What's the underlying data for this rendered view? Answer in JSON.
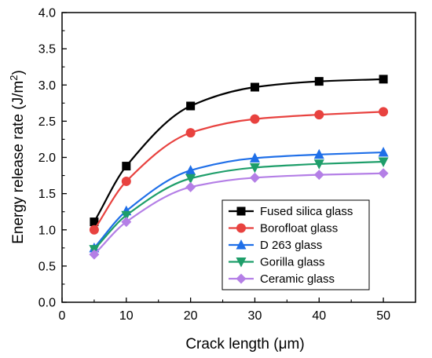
{
  "chart_data": {
    "type": "line",
    "xlabel": "Crack length (μm)",
    "ylabel": "Energy release rate (J/m²)",
    "ylabel_main": "Energy release rate (J/m",
    "ylabel_sup": "2",
    "ylabel_end": ")",
    "xlim": [
      0,
      55
    ],
    "ylim": [
      0.0,
      4.0
    ],
    "x_ticks": [
      0,
      10,
      20,
      30,
      40,
      50
    ],
    "x_tick_labels": [
      "0",
      "10",
      "20",
      "30",
      "40",
      "50"
    ],
    "y_ticks": [
      0.0,
      0.5,
      1.0,
      1.5,
      2.0,
      2.5,
      3.0,
      3.5,
      4.0
    ],
    "y_tick_labels": [
      "0.0",
      "0.5",
      "1.0",
      "1.5",
      "2.0",
      "2.5",
      "3.0",
      "3.5",
      "4.0"
    ],
    "grid": false,
    "legend_position": "bottom-right",
    "x": [
      5,
      10,
      20,
      30,
      40,
      50
    ],
    "series": [
      {
        "name": "Fused silica glass",
        "color": "#000000",
        "marker": "square",
        "values": [
          1.11,
          1.88,
          2.71,
          2.97,
          3.05,
          3.08
        ]
      },
      {
        "name": "Borofloat glass",
        "color": "#e8423f",
        "marker": "circle",
        "values": [
          1.0,
          1.67,
          2.34,
          2.53,
          2.59,
          2.63
        ]
      },
      {
        "name": "D 263 glass",
        "color": "#1f6fe8",
        "marker": "triangle-up",
        "values": [
          0.75,
          1.26,
          1.82,
          1.99,
          2.04,
          2.07
        ]
      },
      {
        "name": "Gorilla glass",
        "color": "#1e9e6a",
        "marker": "triangle-down",
        "values": [
          0.73,
          1.2,
          1.71,
          1.86,
          1.91,
          1.94
        ]
      },
      {
        "name": "Ceramic glass",
        "color": "#b47fe6",
        "marker": "diamond",
        "values": [
          0.66,
          1.11,
          1.59,
          1.72,
          1.76,
          1.78
        ]
      }
    ]
  }
}
